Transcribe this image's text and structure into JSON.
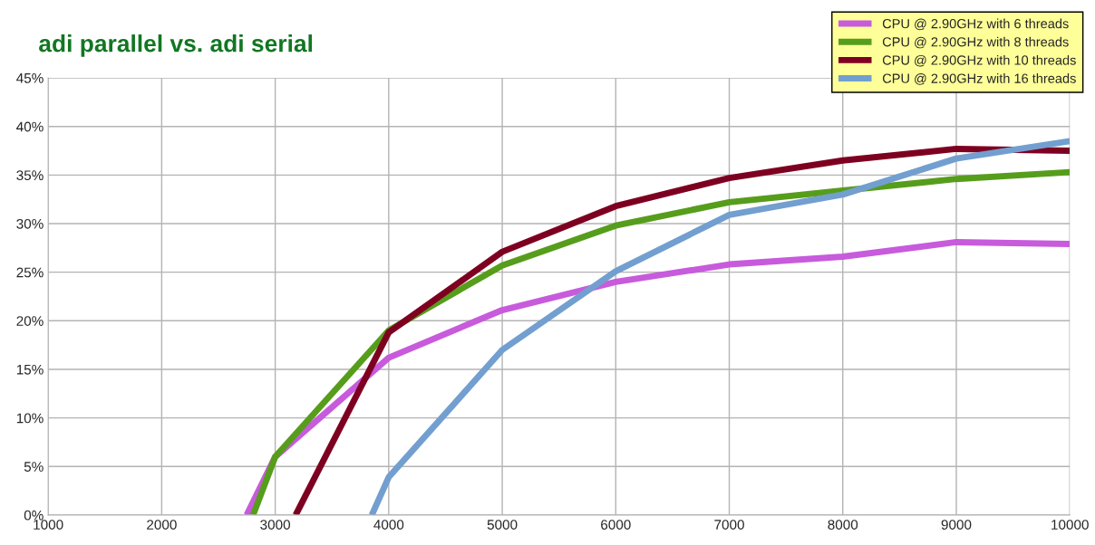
{
  "chart_data": {
    "type": "line",
    "title": "adi parallel vs. adi serial",
    "xlim": [
      1000,
      10000
    ],
    "xticks": [
      1000,
      2000,
      3000,
      4000,
      5000,
      6000,
      7000,
      8000,
      9000,
      10000
    ],
    "ylim": [
      0,
      45
    ],
    "yticks": [
      {
        "value": 0,
        "label": "0%"
      },
      {
        "value": 5,
        "label": "5%"
      },
      {
        "value": 10,
        "label": "10%"
      },
      {
        "value": 15,
        "label": "15%"
      },
      {
        "value": 20,
        "label": "20%"
      },
      {
        "value": 25,
        "label": "25%"
      },
      {
        "value": 30,
        "label": "30%"
      },
      {
        "value": 35,
        "label": "35%"
      },
      {
        "value": 40,
        "label": "40%"
      },
      {
        "value": 45,
        "label": "45%"
      }
    ],
    "grid": true,
    "legend": "top right",
    "marker": "none",
    "line_style": "solid",
    "series": [
      {
        "name": "CPU @ 2.90GHz with 6 threads",
        "color": "#c75bdc",
        "x": [
          2749,
          3000,
          4000,
          5000,
          6000,
          7000,
          8000,
          9000,
          10000
        ],
        "values": [
          0,
          6,
          16.2,
          21.1,
          24,
          25.8,
          26.6,
          28.1,
          27.9
        ]
      },
      {
        "name": "CPU @ 2.90GHz with 8 threads",
        "color": "#579d1c",
        "x": [
          2805,
          3000,
          4000,
          5000,
          6000,
          7000,
          8000,
          9000,
          10000
        ],
        "values": [
          0,
          6,
          19,
          25.7,
          29.8,
          32.2,
          33.4,
          34.6,
          35.3
        ]
      },
      {
        "name": "CPU @ 2.90GHz with 10 threads",
        "color": "#7e0021",
        "x": [
          3180,
          4000,
          5000,
          6000,
          7000,
          8000,
          9000,
          10000
        ],
        "values": [
          0,
          18.8,
          27.1,
          31.8,
          34.7,
          36.5,
          37.7,
          37.5
        ]
      },
      {
        "name": "CPU @ 2.90GHz with 16 threads",
        "color": "#729fcf",
        "x": [
          3851,
          4000,
          5000,
          6000,
          7000,
          8000,
          9000,
          10000
        ],
        "values": [
          0,
          3.9,
          17,
          25.1,
          30.9,
          33,
          36.7,
          38.5
        ]
      }
    ]
  }
}
